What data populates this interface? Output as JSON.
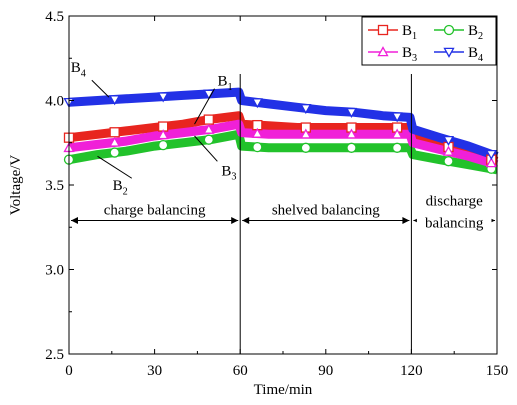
{
  "chart_data": {
    "type": "line",
    "xlabel": "Time/min",
    "ylabel": "Voltage/V",
    "xlim": [
      0,
      150
    ],
    "ylim": [
      2.5,
      4.5
    ],
    "x_ticks": [
      "0",
      "30",
      "60",
      "90",
      "120",
      "150"
    ],
    "y_ticks": [
      "2.5",
      "3.0",
      "3.5",
      "4.0",
      "4.5"
    ],
    "grid": false,
    "legend_position": "top-right",
    "series": [
      {
        "id": "B1",
        "name": "B",
        "sub": "1",
        "color": "#e8251f",
        "marker": "square",
        "points": [
          [
            0,
            3.78
          ],
          [
            10,
            3.8
          ],
          [
            20,
            3.82
          ],
          [
            30,
            3.84
          ],
          [
            40,
            3.86
          ],
          [
            50,
            3.89
          ],
          [
            59.5,
            3.91
          ],
          [
            60.5,
            3.86
          ],
          [
            70,
            3.85
          ],
          [
            80,
            3.84
          ],
          [
            90,
            3.84
          ],
          [
            100,
            3.84
          ],
          [
            110,
            3.84
          ],
          [
            119.5,
            3.84
          ],
          [
            120.5,
            3.79
          ],
          [
            130,
            3.74
          ],
          [
            140,
            3.69
          ],
          [
            150,
            3.64
          ]
        ],
        "marker_x": [
          0,
          16,
          33,
          49,
          66,
          83,
          99,
          115,
          133,
          148
        ]
      },
      {
        "id": "B2",
        "name": "B",
        "sub": "2",
        "color": "#22c22b",
        "marker": "circle",
        "points": [
          [
            0,
            3.65
          ],
          [
            10,
            3.68
          ],
          [
            20,
            3.7
          ],
          [
            30,
            3.73
          ],
          [
            40,
            3.75
          ],
          [
            50,
            3.77
          ],
          [
            59.5,
            3.8
          ],
          [
            60.5,
            3.73
          ],
          [
            70,
            3.72
          ],
          [
            80,
            3.72
          ],
          [
            90,
            3.72
          ],
          [
            100,
            3.72
          ],
          [
            110,
            3.72
          ],
          [
            119.5,
            3.72
          ],
          [
            120.5,
            3.68
          ],
          [
            130,
            3.65
          ],
          [
            140,
            3.62
          ],
          [
            150,
            3.59
          ]
        ],
        "marker_x": [
          0,
          16,
          33,
          49,
          66,
          83,
          99,
          115,
          133,
          148
        ]
      },
      {
        "id": "B3",
        "name": "B",
        "sub": "3",
        "color": "#f020d8",
        "marker": "triangle-up",
        "points": [
          [
            0,
            3.72
          ],
          [
            10,
            3.74
          ],
          [
            20,
            3.76
          ],
          [
            30,
            3.79
          ],
          [
            40,
            3.81
          ],
          [
            50,
            3.83
          ],
          [
            59.5,
            3.86
          ],
          [
            60.5,
            3.81
          ],
          [
            70,
            3.8
          ],
          [
            80,
            3.8
          ],
          [
            90,
            3.8
          ],
          [
            100,
            3.8
          ],
          [
            110,
            3.8
          ],
          [
            119.5,
            3.8
          ],
          [
            120.5,
            3.75
          ],
          [
            130,
            3.71
          ],
          [
            140,
            3.67
          ],
          [
            150,
            3.62
          ]
        ],
        "marker_x": [
          0,
          16,
          33,
          49,
          66,
          83,
          99,
          115,
          133,
          148
        ]
      },
      {
        "id": "B4",
        "name": "B",
        "sub": "4",
        "color": "#2231e6",
        "marker": "triangle-down",
        "points": [
          [
            0,
            3.99
          ],
          [
            10,
            4.0
          ],
          [
            20,
            4.01
          ],
          [
            30,
            4.02
          ],
          [
            40,
            4.03
          ],
          [
            50,
            4.04
          ],
          [
            59.5,
            4.05
          ],
          [
            60.5,
            4.0
          ],
          [
            70,
            3.98
          ],
          [
            80,
            3.96
          ],
          [
            90,
            3.94
          ],
          [
            100,
            3.93
          ],
          [
            110,
            3.91
          ],
          [
            119.5,
            3.9
          ],
          [
            120.5,
            3.83
          ],
          [
            130,
            3.78
          ],
          [
            140,
            3.73
          ],
          [
            150,
            3.67
          ]
        ],
        "marker_x": [
          0,
          16,
          33,
          49,
          66,
          83,
          99,
          115,
          133,
          148
        ]
      }
    ],
    "phases": [
      {
        "label_lines": [
          "charge balancing"
        ],
        "from": 0,
        "to": 60,
        "arrow_y": 3.29
      },
      {
        "label_lines": [
          "shelved balancing"
        ],
        "from": 60,
        "to": 120,
        "arrow_y": 3.29
      },
      {
        "label_lines": [
          "discharge",
          "balancing"
        ],
        "from": 120,
        "to": 150,
        "arrow_y": 3.29
      }
    ],
    "dividers_x": [
      60,
      120
    ],
    "annotations": [
      {
        "name": "B",
        "sub": "4",
        "line_from": [
          14,
          4.02
        ],
        "line_to": [
          8,
          4.12
        ]
      },
      {
        "name": "B",
        "sub": "1",
        "line_from": [
          44,
          3.86
        ],
        "line_to": [
          51,
          4.07
        ]
      },
      {
        "name": "B",
        "sub": "3",
        "line_from": [
          44,
          3.79
        ],
        "line_to": [
          52,
          3.64
        ]
      },
      {
        "name": "B",
        "sub": "2",
        "line_from": [
          10,
          3.67
        ],
        "line_to": [
          22,
          3.54
        ]
      }
    ]
  }
}
